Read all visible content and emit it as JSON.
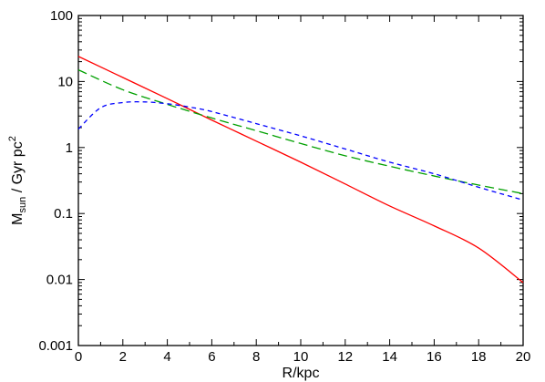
{
  "chart_data": {
    "type": "line",
    "title": "",
    "xlabel": "R/kpc",
    "ylabel": {
      "prefix": "M",
      "subscript": "sun",
      "middle": " / Gyr pc",
      "superscript": "2"
    },
    "xlim": [
      0,
      20
    ],
    "ylim": [
      0.001,
      100
    ],
    "yscale": "log",
    "grid": false,
    "legend": "none",
    "x_ticks": [
      "0",
      "2",
      "4",
      "6",
      "8",
      "10",
      "12",
      "14",
      "16",
      "18",
      "20"
    ],
    "y_ticks": [
      "0.001",
      "0.01",
      "0.1",
      "1",
      "10",
      "100"
    ],
    "series": [
      {
        "color": "#ff0000",
        "dash": "solid",
        "x": [
          0,
          2,
          4,
          6,
          8,
          10,
          12,
          14,
          16,
          18,
          20
        ],
        "y": [
          24,
          11.5,
          5.5,
          2.6,
          1.25,
          0.6,
          0.28,
          0.13,
          0.065,
          0.03,
          0.009
        ]
      },
      {
        "color": "#00a000",
        "dash": "long-dash",
        "x": [
          0,
          2,
          4,
          6,
          8,
          10,
          12,
          14,
          16,
          18,
          20
        ],
        "y": [
          15,
          7.5,
          4.5,
          2.8,
          1.8,
          1.15,
          0.75,
          0.52,
          0.37,
          0.27,
          0.2
        ]
      },
      {
        "color": "#0000ff",
        "dash": "short-dash",
        "x": [
          0,
          1,
          2,
          3,
          4,
          5,
          6,
          8,
          10,
          12,
          14,
          16,
          18,
          20
        ],
        "y": [
          1.9,
          4.0,
          4.8,
          4.9,
          4.6,
          4.1,
          3.5,
          2.3,
          1.5,
          0.95,
          0.6,
          0.4,
          0.25,
          0.16
        ]
      }
    ]
  }
}
